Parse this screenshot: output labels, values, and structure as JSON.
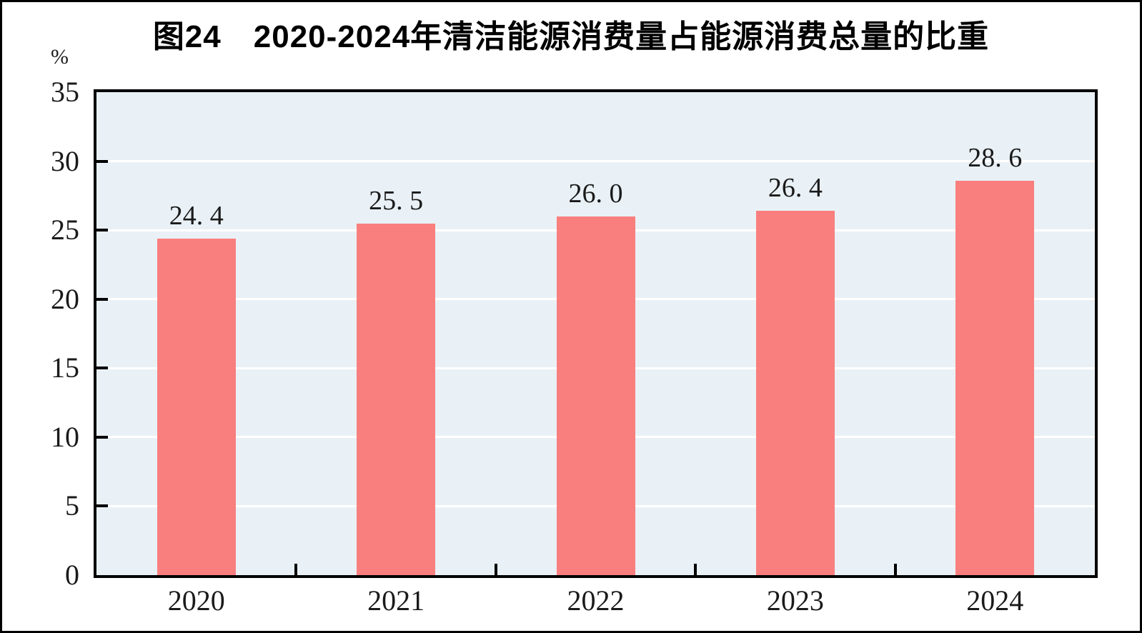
{
  "chart_data": {
    "type": "bar",
    "title": "图24　2020-2024年清洁能源消费量占能源消费总量的比重",
    "unit_label": "%",
    "categories": [
      "2020",
      "2021",
      "2022",
      "2023",
      "2024"
    ],
    "values": [
      24.4,
      25.5,
      26.0,
      26.4,
      28.6
    ],
    "value_labels": [
      "24. 4",
      "25. 5",
      "26. 0",
      "26. 4",
      "28. 6"
    ],
    "ylim": [
      0,
      35
    ],
    "ytick_step": 5,
    "yticks": [
      0,
      5,
      10,
      15,
      20,
      25,
      30,
      35
    ],
    "grid": "horizontal",
    "legend_position": "none",
    "colors": {
      "bar": "#F97F7F",
      "plot_background": "#E9F1F6",
      "gridline": "#FFFFFF",
      "axis": "#000000",
      "text": "#1a1a1a",
      "frame_border": "#000000"
    }
  }
}
